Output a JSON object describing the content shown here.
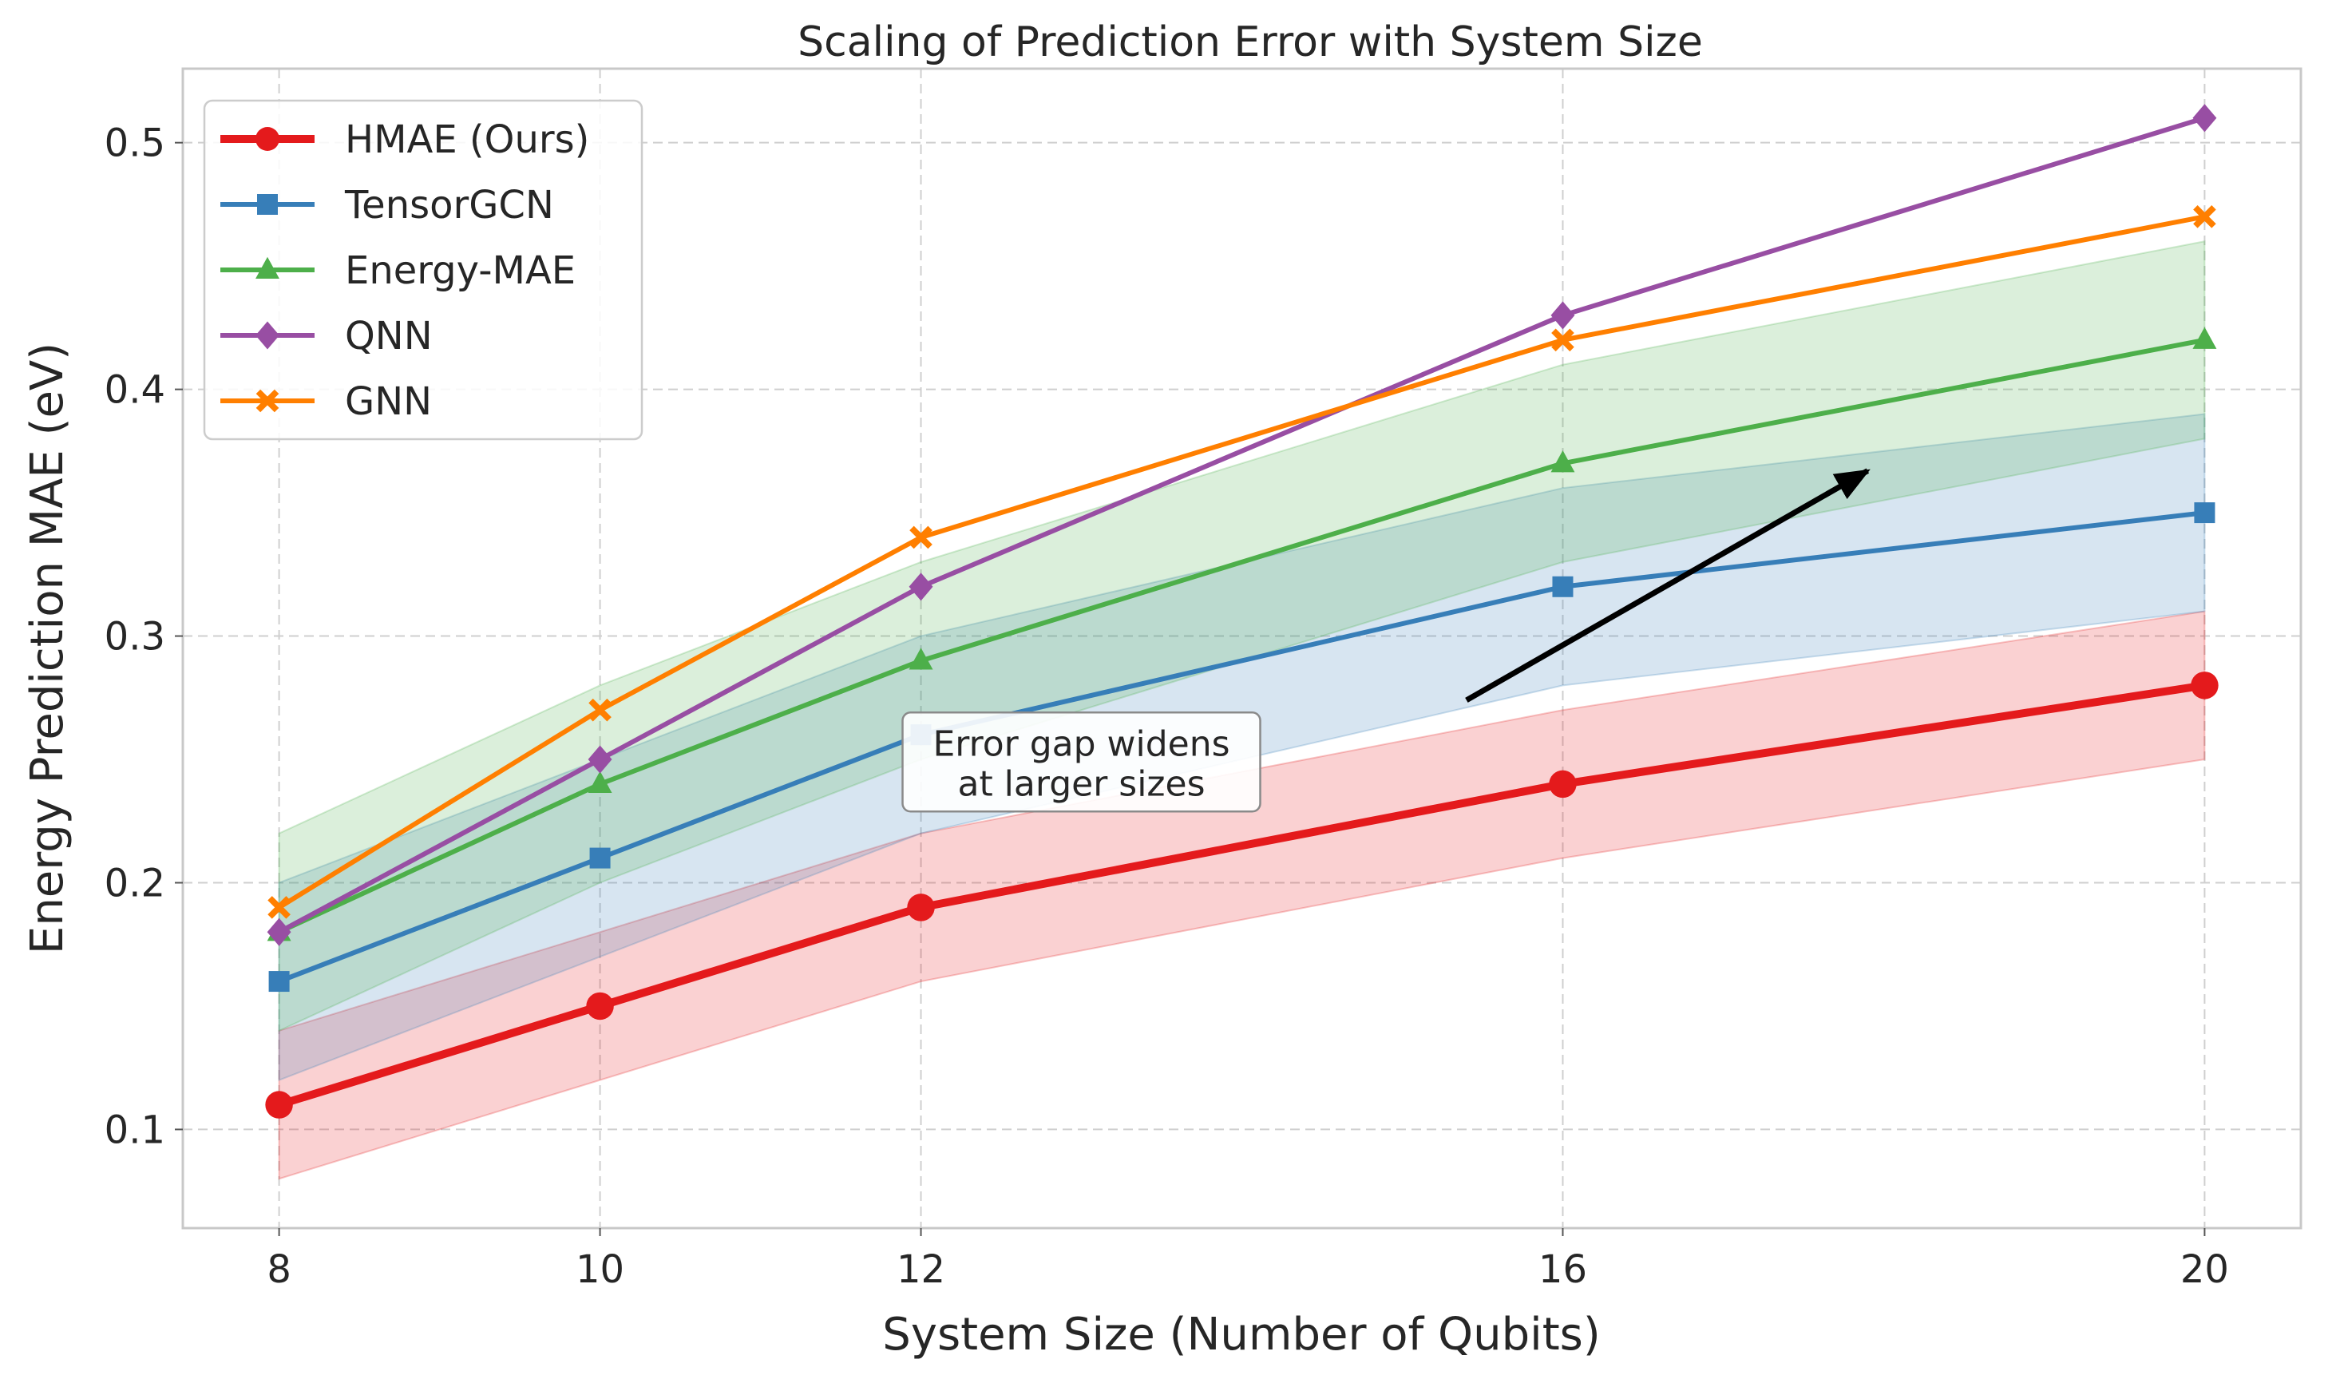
{
  "chart_data": {
    "type": "line",
    "title": "Scaling of Prediction Error with System Size",
    "xlabel": "System Size (Number of Qubits)",
    "ylabel": "Energy Prediction MAE (eV)",
    "x": [
      8,
      10,
      12,
      16,
      20
    ],
    "x_tick_labels": [
      "8",
      "10",
      "12",
      "16",
      "20"
    ],
    "xlim": [
      7.4,
      20.6
    ],
    "ylim": [
      0.06,
      0.53
    ],
    "y_ticks": [
      0.1,
      0.2,
      0.3,
      0.4,
      0.5
    ],
    "y_tick_labels": [
      "0.1",
      "0.2",
      "0.3",
      "0.4",
      "0.5"
    ],
    "grid": true,
    "legend_position": "top-left",
    "series": [
      {
        "name": "HMAE (Ours)",
        "color": "#e41a1c",
        "marker": "circle",
        "emphasis": true,
        "values": [
          0.11,
          0.15,
          0.19,
          0.24,
          0.28
        ],
        "band_low": [
          0.08,
          0.12,
          0.16,
          0.21,
          0.25
        ],
        "band_high": [
          0.14,
          0.18,
          0.22,
          0.27,
          0.31
        ]
      },
      {
        "name": "TensorGCN",
        "color": "#377eb8",
        "marker": "square",
        "emphasis": false,
        "values": [
          0.16,
          0.21,
          0.26,
          0.32,
          0.35
        ],
        "band_low": [
          0.12,
          0.17,
          0.22,
          0.28,
          0.31
        ],
        "band_high": [
          0.2,
          0.25,
          0.3,
          0.36,
          0.39
        ]
      },
      {
        "name": "Energy-MAE",
        "color": "#4daf4a",
        "marker": "triangle",
        "emphasis": false,
        "values": [
          0.18,
          0.24,
          0.29,
          0.37,
          0.42
        ],
        "band_low": [
          0.14,
          0.2,
          0.25,
          0.33,
          0.38
        ],
        "band_high": [
          0.22,
          0.28,
          0.33,
          0.41,
          0.46
        ]
      },
      {
        "name": "QNN",
        "color": "#984ea3",
        "marker": "diamond",
        "emphasis": false,
        "values": [
          0.18,
          0.25,
          0.32,
          0.43,
          0.51
        ]
      },
      {
        "name": "GNN",
        "color": "#ff7f00",
        "marker": "x",
        "emphasis": false,
        "values": [
          0.19,
          0.27,
          0.34,
          0.42,
          0.47
        ]
      }
    ],
    "annotation": {
      "lines": [
        "Error gap widens",
        "at larger sizes"
      ],
      "text_anchor": [
        13.0,
        0.247
      ],
      "arrow_start": [
        15.4,
        0.274
      ],
      "arrow_end": [
        17.9,
        0.367
      ]
    }
  }
}
